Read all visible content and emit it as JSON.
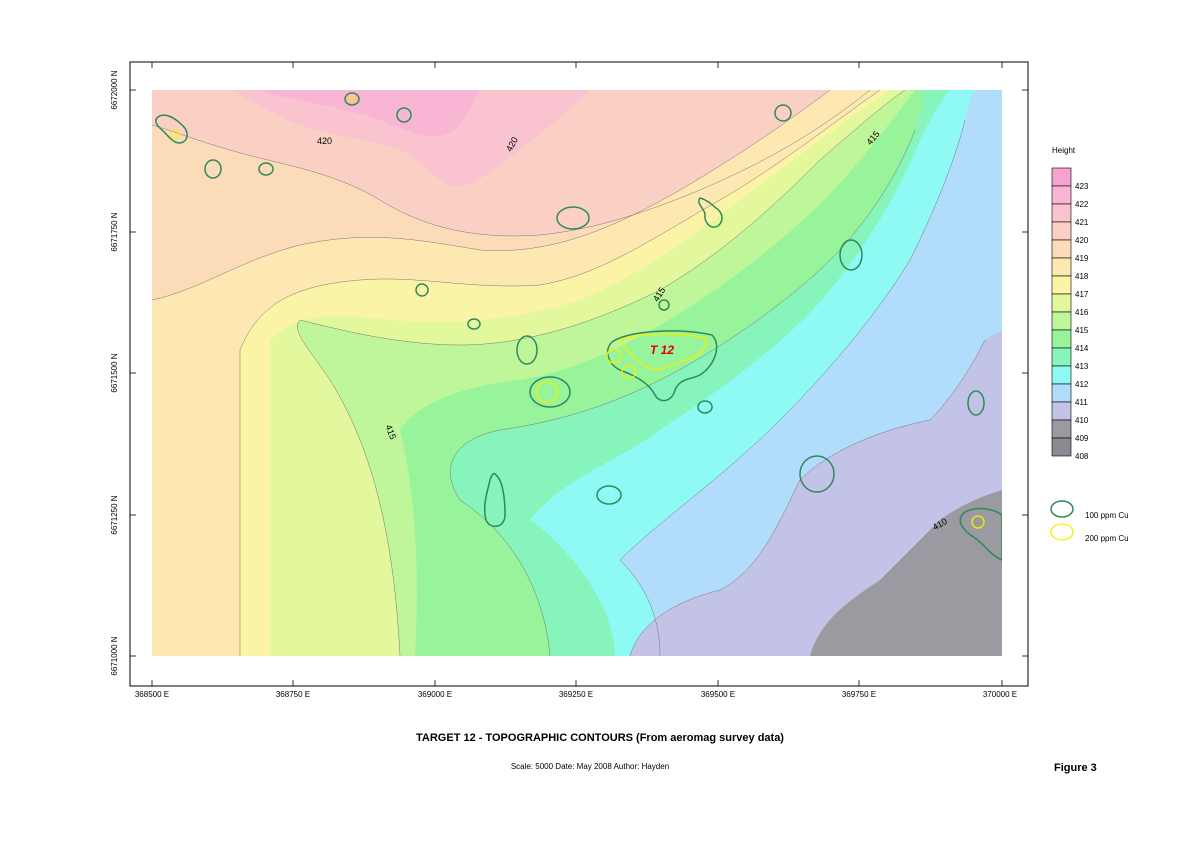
{
  "map": {
    "x_ticks": [
      "368500 E",
      "368750 E",
      "369000 E",
      "369250 E",
      "369500 E",
      "369750 E",
      "370000 E"
    ],
    "y_ticks": [
      "6672000 N",
      "6671750 N",
      "6671500 N",
      "6671250 N",
      "6671000 N"
    ],
    "contour_labels": [
      "420",
      "420",
      "415",
      "415",
      "415",
      "410"
    ],
    "target_label": "T 12"
  },
  "legend": {
    "title": "Height",
    "levels": [
      "423",
      "422",
      "421",
      "420",
      "419",
      "418",
      "417",
      "416",
      "415",
      "414",
      "413",
      "412",
      "411",
      "410",
      "409",
      "408"
    ],
    "colors": [
      "#f7a3cf",
      "#f8b6d4",
      "#f9c4cf",
      "#fbd0c4",
      "#fcdcb8",
      "#fee8b2",
      "#fbf3a6",
      "#e3f79c",
      "#bff69a",
      "#98f49a",
      "#86f4bb",
      "#8ff9f3",
      "#b2dcfb",
      "#c2c3e6",
      "#9a9aa0",
      "#8a8a90"
    ],
    "cu_100_label": "100 ppm Cu",
    "cu_200_label": "200 ppm Cu",
    "cu_100_color": "#2e8a5a",
    "cu_200_color": "#f4f000"
  },
  "footer": {
    "title": "TARGET 12  -  TOPOGRAPHIC CONTOURS (From aeromag survey data)",
    "subtitle": "Scale: 5000     Date: May 2008     Author: Hayden",
    "figure": "Figure 3"
  }
}
